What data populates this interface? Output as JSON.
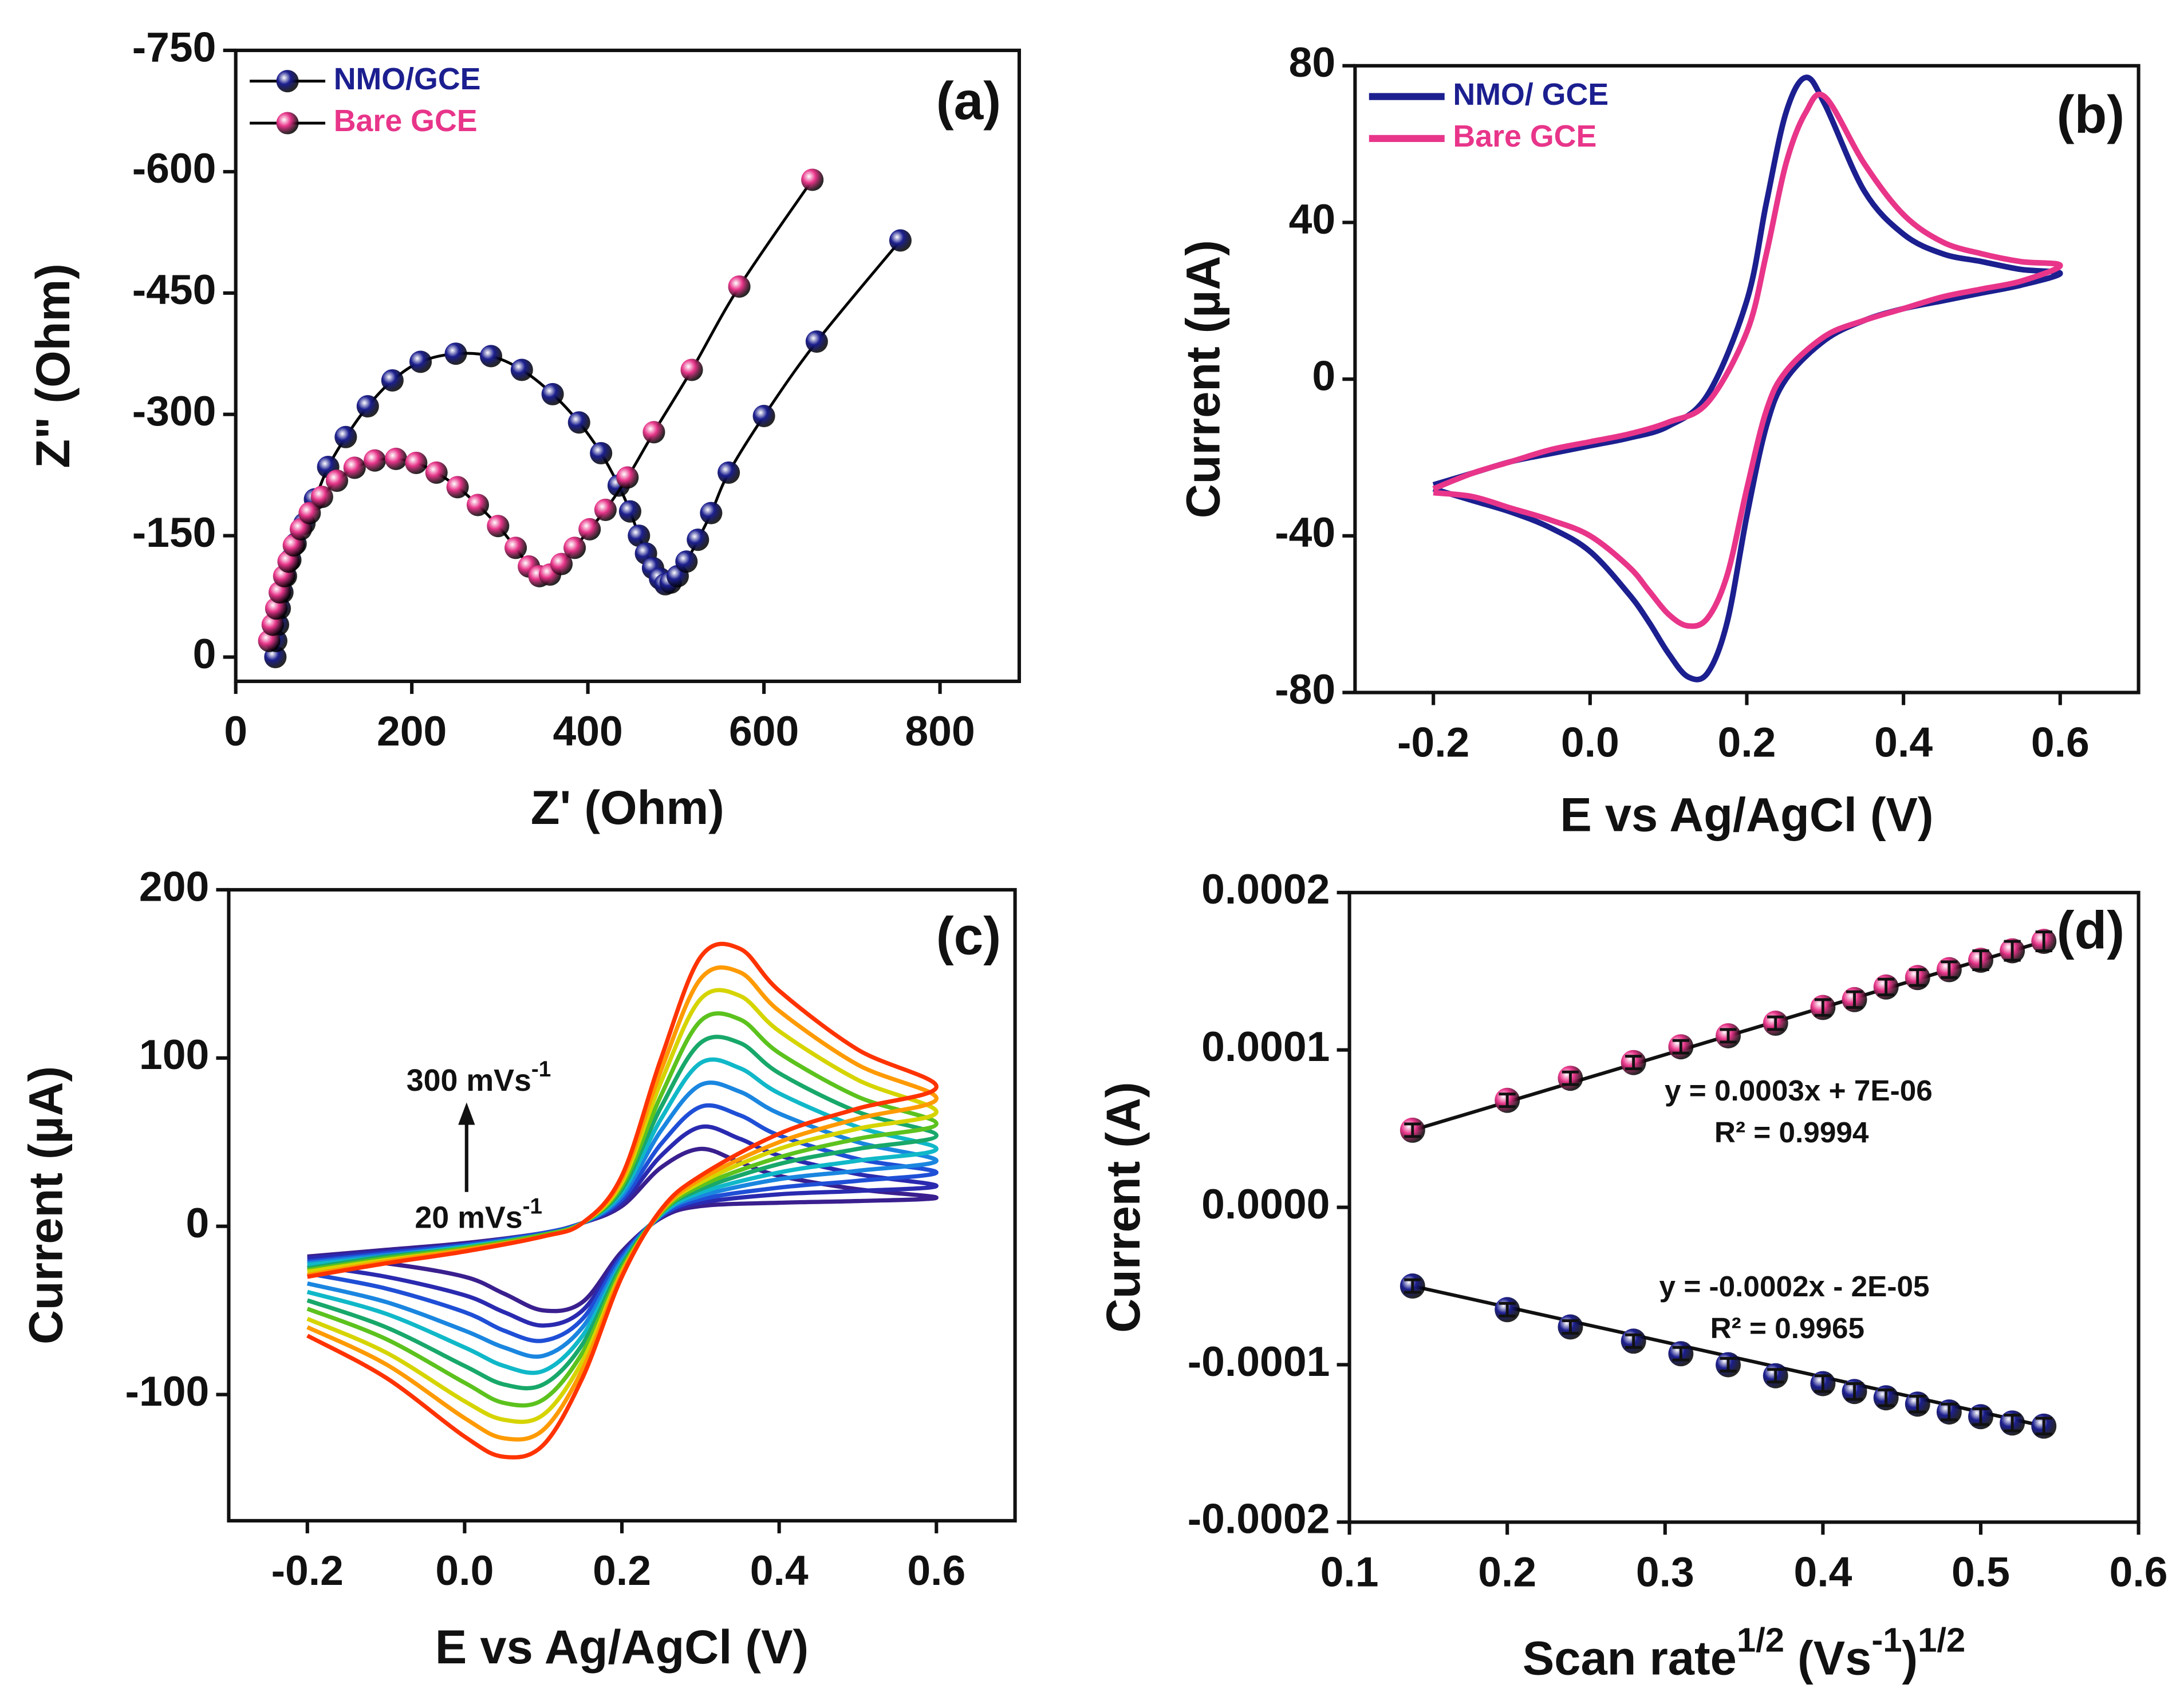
{
  "chart_data": [
    {
      "type": "line",
      "panel_label": "(a)",
      "x_label": "Z' (Ohm)",
      "y_label": "Z\" (Ohm)",
      "xlim": [
        0,
        890
      ],
      "xticks": [
        0,
        200,
        400,
        600,
        800
      ],
      "ylim": [
        30,
        -750
      ],
      "yticks": [
        -750,
        -600,
        -450,
        -300,
        -150,
        0
      ],
      "markers": true,
      "line_color": "#000000",
      "legend": "upper left",
      "series": [
        {
          "name": "NMO/GCE",
          "color": "#1c1f8f",
          "x": [
            45,
            46,
            48,
            50,
            53,
            57,
            62,
            68,
            78,
            90,
            105,
            125,
            150,
            178,
            210,
            250,
            290,
            325,
            360,
            390,
            415,
            435,
            448,
            458,
            466,
            474,
            482,
            488,
            494,
            502,
            512,
            525,
            540,
            560,
            600,
            660,
            755
          ],
          "values": [
            0,
            -20,
            -40,
            -60,
            -80,
            -100,
            -120,
            -140,
            -165,
            -195,
            -235,
            -272,
            -310,
            -342,
            -365,
            -375,
            -372,
            -355,
            -325,
            -290,
            -252,
            -212,
            -180,
            -150,
            -128,
            -110,
            -97,
            -90,
            -92,
            -100,
            -118,
            -145,
            -178,
            -228,
            -298,
            -390,
            -515
          ]
        },
        {
          "name": "Bare GCE",
          "color": "#e8358a",
          "x": [
            38,
            42,
            46,
            50,
            55,
            60,
            66,
            74,
            84,
            98,
            115,
            135,
            158,
            182,
            205,
            228,
            252,
            275,
            298,
            318,
            333,
            345,
            357,
            370,
            385,
            402,
            420,
            445,
            475,
            518,
            572,
            655
          ],
          "values": [
            -20,
            -40,
            -60,
            -80,
            -100,
            -118,
            -138,
            -158,
            -178,
            -198,
            -218,
            -234,
            -243,
            -245,
            -240,
            -228,
            -210,
            -188,
            -162,
            -135,
            -112,
            -100,
            -102,
            -115,
            -135,
            -158,
            -182,
            -222,
            -278,
            -355,
            -458,
            -590
          ]
        }
      ]
    },
    {
      "type": "line",
      "panel_label": "(b)",
      "x_label": "E vs Ag/AgCl (V)",
      "y_label": "Current (µA)",
      "xlim": [
        -0.3,
        0.7
      ],
      "xticks": [
        -0.2,
        {
          "value": 0,
          "label": "0.0"
        },
        0.2,
        0.4,
        0.6
      ],
      "ylim": [
        -80,
        80
      ],
      "yticks": [
        -80,
        -40,
        0,
        40,
        80
      ],
      "markers": false,
      "legend": "upper left",
      "x": [
        -0.2,
        -0.15,
        -0.1,
        -0.05,
        0,
        0.05,
        0.1,
        0.15,
        0.2,
        0.225,
        0.25,
        0.275,
        0.3,
        0.35,
        0.4,
        0.45,
        0.5,
        0.55,
        0.6,
        0.55,
        0.5,
        0.45,
        0.4,
        0.35,
        0.3,
        0.25,
        0.225,
        0.2,
        0.175,
        0.15,
        0.125,
        0.1,
        0.075,
        0.05,
        0,
        -0.05,
        -0.1,
        -0.15,
        -0.2
      ],
      "series": [
        {
          "name": "NMO/ GCE",
          "color": "#1c1f8f",
          "values": [
            -27,
            -24,
            -21,
            -19,
            -17,
            -15,
            -12,
            -4,
            20,
            45,
            68,
            77,
            70,
            48,
            37,
            32,
            30,
            28,
            27,
            24,
            22,
            20,
            18,
            15,
            10,
            0,
            -12,
            -35,
            -62,
            -75,
            -76,
            -70,
            -62,
            -55,
            -44,
            -38,
            -34,
            -31,
            -28
          ]
        },
        {
          "name": "Bare GCE",
          "color": "#e8358a",
          "values": [
            -28,
            -24,
            -21,
            -18,
            -16,
            -14,
            -11,
            -6,
            12,
            32,
            55,
            68,
            72,
            55,
            42,
            35,
            32,
            30,
            29,
            25,
            23,
            21,
            18,
            15,
            11,
            2,
            -8,
            -28,
            -50,
            -61,
            -63,
            -60,
            -54,
            -48,
            -40,
            -36,
            -33,
            -30,
            -29
          ]
        }
      ]
    },
    {
      "type": "line",
      "panel_label": "(c)",
      "x_label": "E vs Ag/AgCl (V)",
      "y_label": "Current (µA)",
      "xlim": [
        -0.3,
        0.7
      ],
      "xticks": [
        -0.2,
        {
          "value": 0,
          "label": "0.0"
        },
        0.2,
        0.4,
        0.6
      ],
      "ylim": [
        -175,
        200
      ],
      "yticks": [
        -100,
        0,
        100,
        200
      ],
      "markers": false,
      "annotations": [
        [
          "300 mVs",
          "-1"
        ],
        [
          "20 mVs",
          "-1"
        ]
      ],
      "x": [
        -0.2,
        -0.1,
        0,
        0.1,
        0.15,
        0.2,
        0.25,
        0.3,
        0.35,
        0.4,
        0.5,
        0.6,
        0.5,
        0.4,
        0.3,
        0.25,
        0.2,
        0.15,
        0.1,
        0.05,
        0,
        -0.1,
        -0.2
      ],
      "series": [
        {
          "color": "#3a1f8f",
          "values": [
            -18,
            -14,
            -10,
            -4,
            2,
            12,
            35,
            46,
            38,
            30,
            22,
            17,
            15,
            14,
            12,
            5,
            -15,
            -45,
            -50,
            -40,
            -30,
            -22,
            -18
          ]
        },
        {
          "color": "#2a2ab0",
          "values": [
            -19,
            -15,
            -11,
            -4,
            2,
            14,
            42,
            59,
            52,
            42,
            31,
            24,
            21,
            19,
            14,
            6,
            -17,
            -50,
            -59,
            -51,
            -41,
            -30,
            -23
          ]
        },
        {
          "color": "#1f4fd6",
          "values": [
            -21,
            -16,
            -11,
            -4,
            2,
            16,
            49,
            71,
            66,
            54,
            40,
            32,
            27,
            23,
            16,
            6,
            -18,
            -55,
            -68,
            -62,
            -51,
            -37,
            -28
          ]
        },
        {
          "color": "#1a86e0",
          "values": [
            -22,
            -17,
            -12,
            -5,
            2,
            18,
            57,
            84,
            80,
            67,
            50,
            39,
            33,
            28,
            18,
            7,
            -20,
            -60,
            -77,
            -72,
            -62,
            -45,
            -34
          ]
        },
        {
          "color": "#10b8c8",
          "values": [
            -23,
            -18,
            -12,
            -5,
            2,
            20,
            64,
            97,
            94,
            79,
            59,
            46,
            39,
            32,
            20,
            7,
            -22,
            -65,
            -86,
            -83,
            -72,
            -52,
            -39
          ]
        },
        {
          "color": "#18a86a",
          "values": [
            -25,
            -18,
            -13,
            -5,
            2,
            22,
            71,
            109,
            109,
            91,
            68,
            54,
            46,
            37,
            22,
            8,
            -23,
            -70,
            -94,
            -94,
            -83,
            -60,
            -44
          ]
        },
        {
          "color": "#5cc21e",
          "values": [
            -26,
            -19,
            -13,
            -5,
            2,
            24,
            78,
            122,
            123,
            103,
            77,
            61,
            52,
            41,
            24,
            8,
            -25,
            -75,
            -103,
            -105,
            -93,
            -67,
            -49
          ]
        },
        {
          "color": "#d6d400",
          "values": [
            -27,
            -20,
            -14,
            -6,
            2,
            26,
            86,
            135,
            137,
            116,
            87,
            68,
            58,
            46,
            26,
            9,
            -27,
            -80,
            -112,
            -115,
            -104,
            -75,
            -55
          ]
        },
        {
          "color": "#ff9a00",
          "values": [
            -29,
            -21,
            -14,
            -6,
            2,
            28,
            93,
            147,
            151,
            128,
            96,
            76,
            64,
            50,
            28,
            9,
            -28,
            -85,
            -121,
            -126,
            -114,
            -82,
            -60
          ]
        },
        {
          "color": "#ff3300",
          "values": [
            -30,
            -22,
            -15,
            -6,
            2,
            30,
            100,
            160,
            165,
            140,
            105,
            83,
            70,
            55,
            30,
            10,
            -30,
            -90,
            -130,
            -137,
            -125,
            -90,
            -65
          ]
        }
      ]
    },
    {
      "type": "scatter",
      "panel_label": "(d)",
      "x_label": [
        "Scan rate",
        "1/2",
        " (Vs",
        "-1",
        ")",
        "1/2"
      ],
      "y_label": "Current (A)",
      "xlim": [
        0.1,
        0.6
      ],
      "xticks": [
        0.1,
        0.2,
        0.3,
        0.4,
        0.5,
        0.6
      ],
      "ylim": [
        -0.0002,
        0.0002
      ],
      "yticks": [
        -0.0002,
        -0.0001,
        {
          "value": 0,
          "label": "0.0000"
        },
        0.0001,
        0.0002
      ],
      "annotations": [
        "y = 0.0003x + 7E-06",
        "R² = 0.9994",
        "y = -0.0002x - 2E-05",
        "R² = 0.9965"
      ],
      "x": [
        0.14,
        0.2,
        0.24,
        0.28,
        0.31,
        0.34,
        0.37,
        0.4,
        0.42,
        0.44,
        0.46,
        0.48,
        0.5,
        0.52,
        0.54
      ],
      "series": [
        {
          "color": "#e8358a",
          "values": [
            4.9e-05,
            6.8e-05,
            8.2e-05,
            9.2e-05,
            0.000102,
            0.000109,
            0.000117,
            0.000127,
            0.000132,
            0.00014,
            0.000146,
            0.000151,
            0.000157,
            0.000163,
            0.000169
          ],
          "errors": [
            4e-06,
            4e-06,
            4e-06,
            4e-06,
            4e-06,
            4e-06,
            4e-06,
            5e-06,
            5e-06,
            5e-06,
            5e-06,
            5e-06,
            6e-06,
            6e-06,
            6e-06
          ],
          "fit_x": [
            0.14,
            0.54
          ],
          "fit_values": [
            4.9e-05,
            0.000169
          ]
        },
        {
          "color": "#1c1f8f",
          "values": [
            -5e-05,
            -6.5e-05,
            -7.6e-05,
            -8.5e-05,
            -9.3e-05,
            -0.0001,
            -0.000107,
            -0.000112,
            -0.000117,
            -0.000121,
            -0.000125,
            -0.00013,
            -0.000133,
            -0.000137,
            -0.000139
          ],
          "errors": [
            4e-06,
            4e-06,
            4e-06,
            4e-06,
            4e-06,
            4e-06,
            4e-06,
            5e-06,
            5e-06,
            5e-06,
            5e-06,
            5e-06,
            5e-06,
            5e-06,
            5e-06
          ],
          "fit_x": [
            0.14,
            0.54
          ],
          "fit_values": [
            -5e-05,
            -0.000139
          ]
        }
      ]
    }
  ]
}
